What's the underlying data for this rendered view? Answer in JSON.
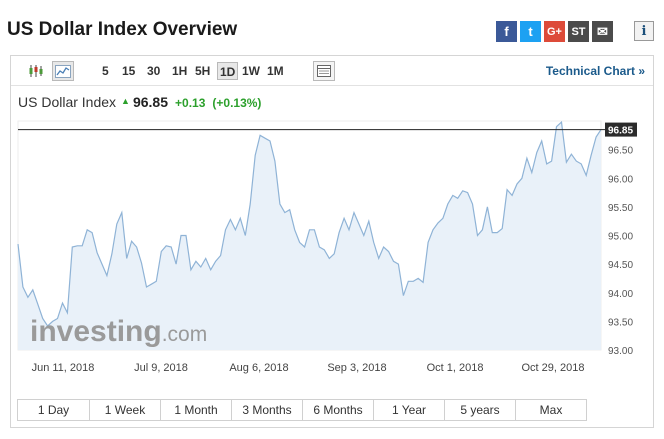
{
  "page": {
    "title": "US Dollar Index Overview"
  },
  "share": {
    "facebook": "f",
    "twitter": "t",
    "google": "G+",
    "stocktwits": "ST",
    "email": "✉",
    "info": "i"
  },
  "toolbar": {
    "timeframes": [
      "5",
      "15",
      "30",
      "1H",
      "5H",
      "1D",
      "1W",
      "1M"
    ],
    "active_timeframe": "1D",
    "technical_chart": "Technical Chart »"
  },
  "quote": {
    "name": "US Dollar Index",
    "last": "96.85",
    "change": "+0.13",
    "change_pct": "(+0.13%)"
  },
  "watermark": {
    "brand": "investing",
    "suffix": ".com"
  },
  "range_buttons": [
    "1 Day",
    "1 Week",
    "1 Month",
    "3 Months",
    "6 Months",
    "1 Year",
    "5 years",
    "Max"
  ],
  "colors": {
    "line": "#8fb3d6",
    "area": "#e9f1f9",
    "positive": "#2ca02c",
    "link": "#1b5a8b"
  },
  "chart_data": {
    "type": "area",
    "x_tick_labels": [
      "Jun 11, 2018",
      "Jul 9, 2018",
      "Aug 6, 2018",
      "Sep 3, 2018",
      "Oct 1, 2018",
      "Oct 29, 2018"
    ],
    "y_ticks": [
      93.0,
      93.5,
      94.0,
      94.5,
      95.0,
      95.5,
      96.0,
      96.5
    ],
    "ylim": [
      93.0,
      97.0
    ],
    "last_price_line": 96.85,
    "last_price_label": "96.85",
    "grid": false,
    "values": [
      94.85,
      94.1,
      93.92,
      94.05,
      93.8,
      93.55,
      93.42,
      93.5,
      93.55,
      93.82,
      93.65,
      94.8,
      94.82,
      94.82,
      95.1,
      95.05,
      94.7,
      94.5,
      94.3,
      94.68,
      95.2,
      95.4,
      94.6,
      94.9,
      94.8,
      94.52,
      94.1,
      94.15,
      94.2,
      94.72,
      94.82,
      94.8,
      94.5,
      95.0,
      95.0,
      94.4,
      94.55,
      94.45,
      94.6,
      94.4,
      94.55,
      94.65,
      95.1,
      95.28,
      95.1,
      95.3,
      95.0,
      95.55,
      96.4,
      96.75,
      96.7,
      96.65,
      96.3,
      95.55,
      95.4,
      95.45,
      95.1,
      94.88,
      94.8,
      95.1,
      95.1,
      94.8,
      94.75,
      94.6,
      94.68,
      95.05,
      95.3,
      95.1,
      95.4,
      95.2,
      95.0,
      95.25,
      94.88,
      94.6,
      94.8,
      94.72,
      94.55,
      94.5,
      93.95,
      94.2,
      94.2,
      94.25,
      94.18,
      94.88,
      95.1,
      95.22,
      95.3,
      95.55,
      95.7,
      95.65,
      95.78,
      95.75,
      95.55,
      95.0,
      95.1,
      95.5,
      95.05,
      95.05,
      95.12,
      95.8,
      95.7,
      95.9,
      96.0,
      96.35,
      96.1,
      96.45,
      96.65,
      96.25,
      96.3,
      96.9,
      96.98,
      96.28,
      96.42,
      96.3,
      96.25,
      96.05,
      96.4,
      96.72,
      96.85
    ]
  }
}
